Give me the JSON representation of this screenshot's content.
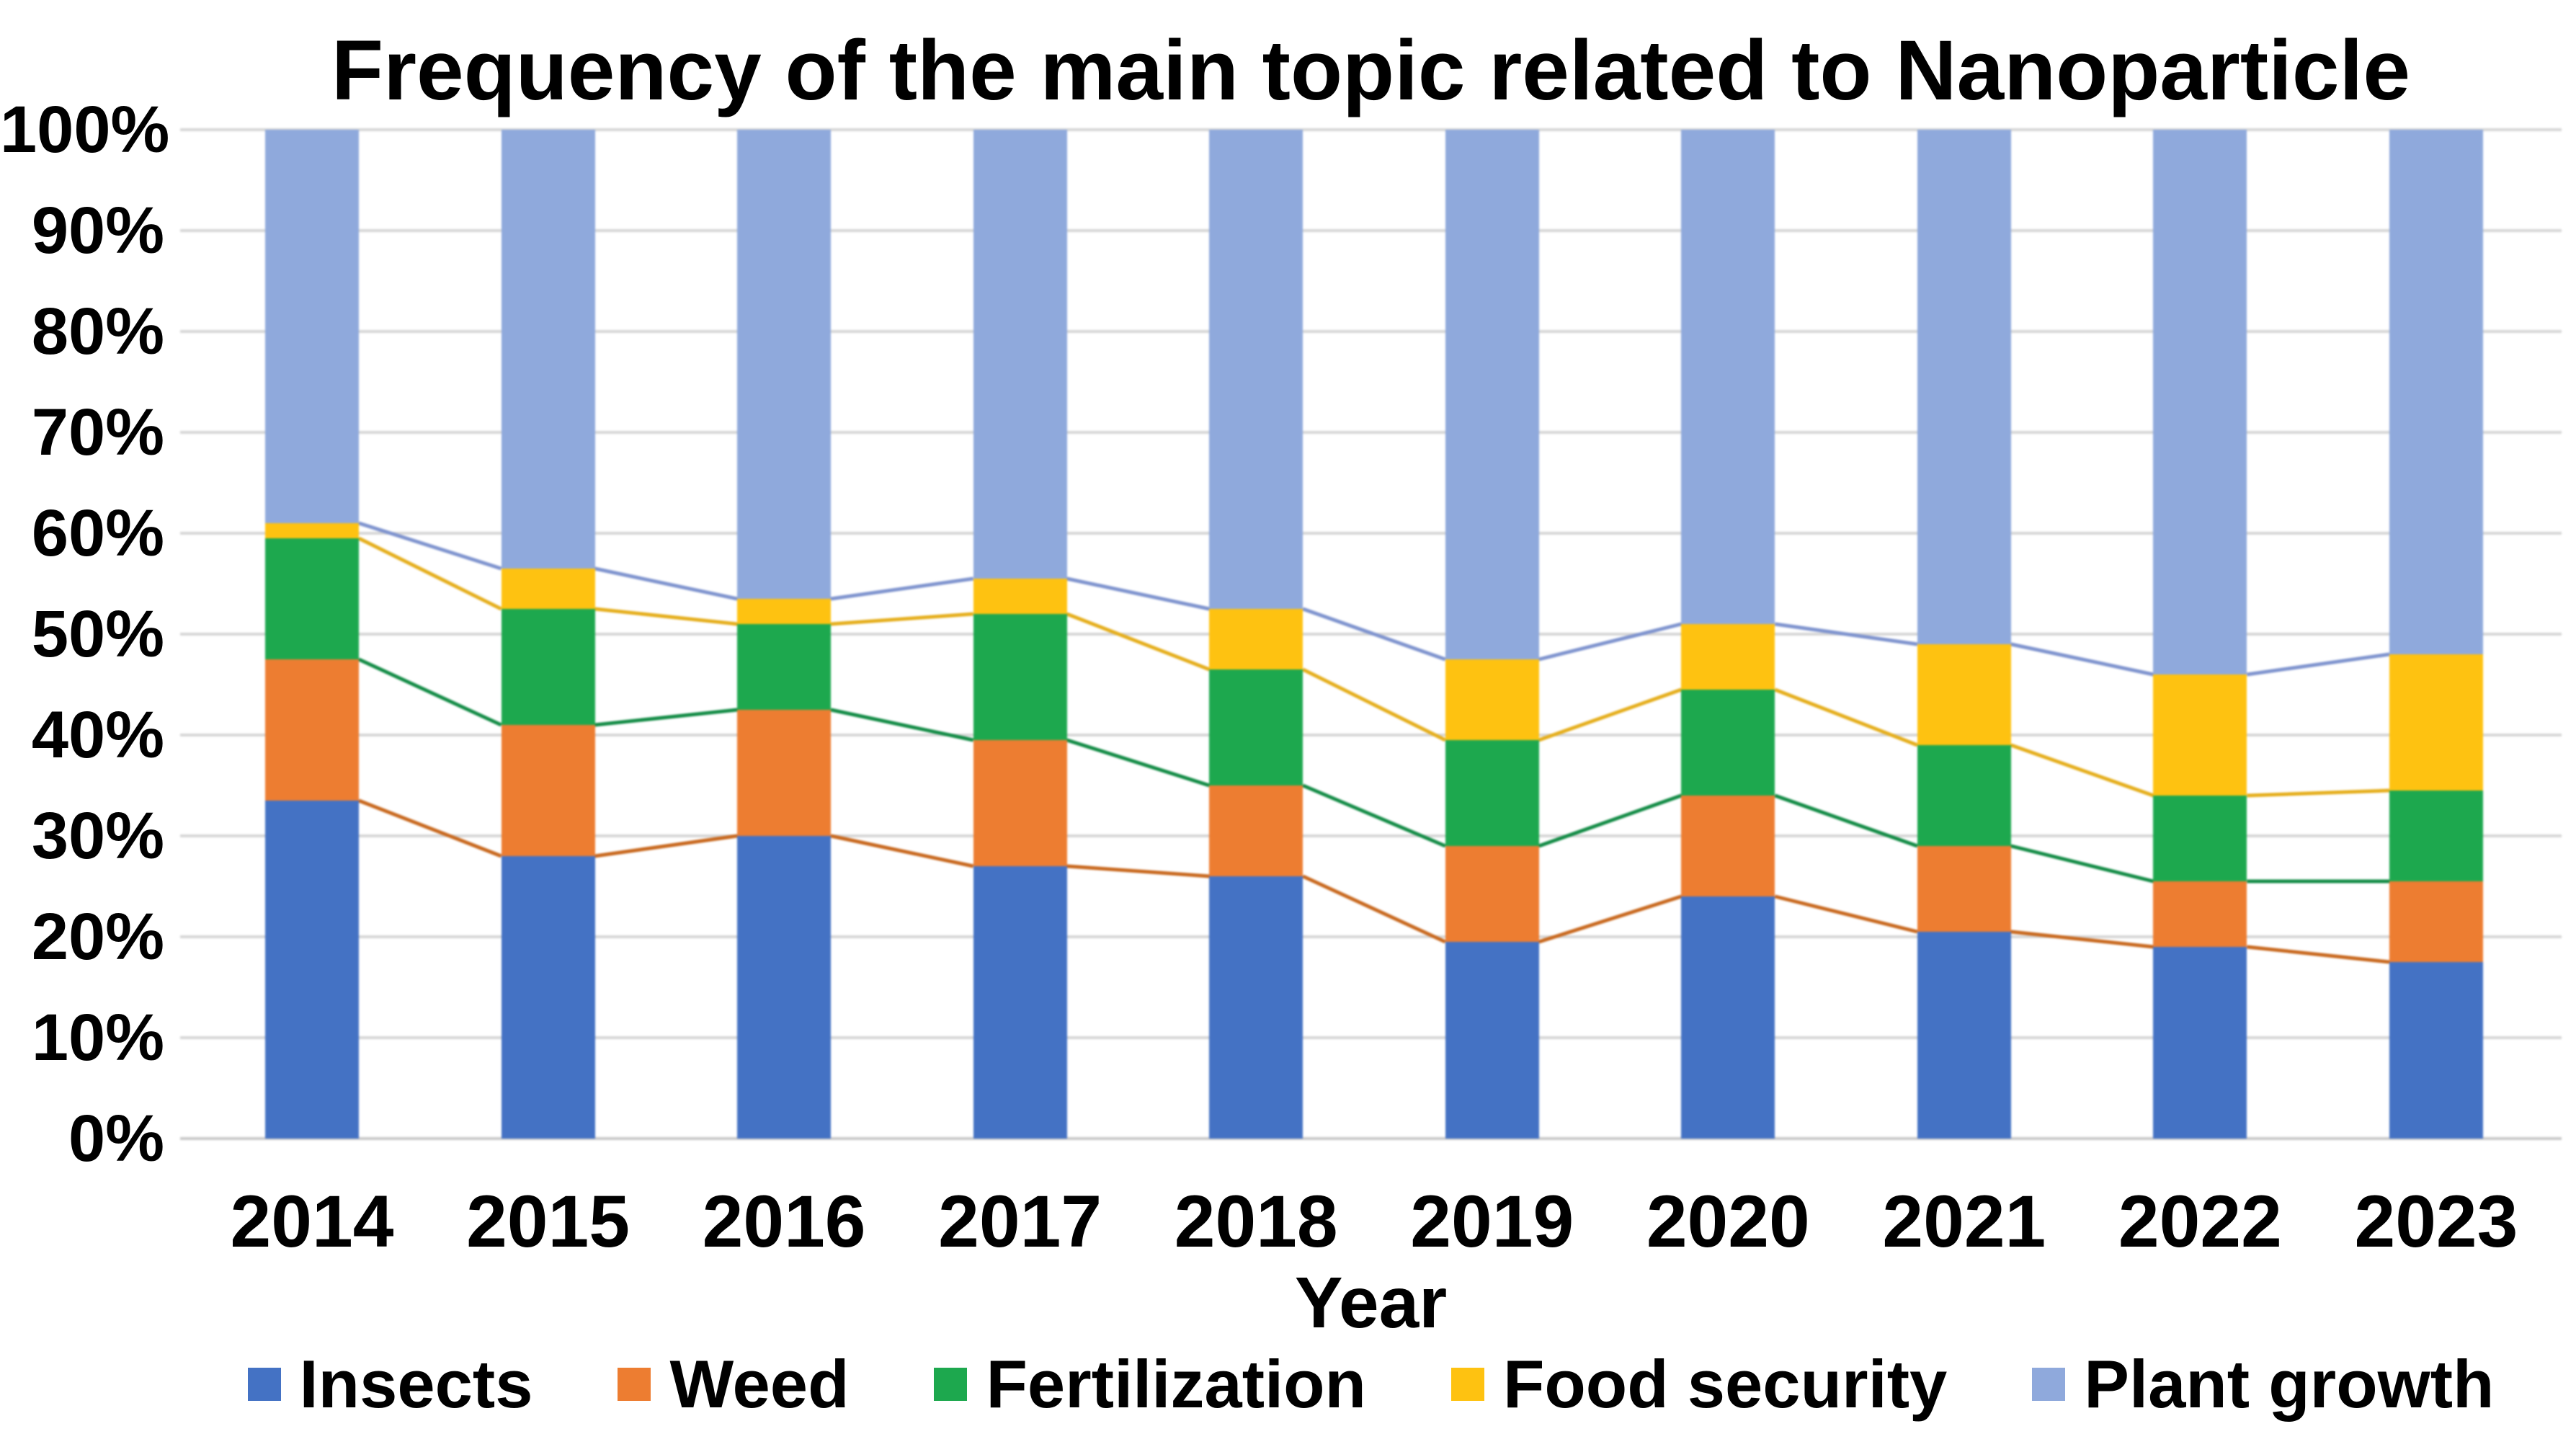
{
  "title": "Frequency of the main topic related to Nanoparticle",
  "x_axis": {
    "label": "Year"
  },
  "y_axis": {
    "ticks_percent": [
      0,
      10,
      20,
      30,
      40,
      50,
      60,
      70,
      80,
      90,
      100
    ],
    "tick_suffix": "%"
  },
  "colors": {
    "gridline": "#d6d6d6",
    "axis_line": "#c9c9c9",
    "text": "#000000"
  },
  "chart_data": {
    "type": "bar",
    "stacking": "percent",
    "title": "Frequency of the main topic related to Nanoparticle",
    "xlabel": "Year",
    "ylabel": "",
    "ylim": [
      0,
      100
    ],
    "grid": true,
    "legend_position": "bottom",
    "categories": [
      "2014",
      "2015",
      "2016",
      "2017",
      "2018",
      "2019",
      "2020",
      "2021",
      "2022",
      "2023"
    ],
    "series": [
      {
        "name": "Insects",
        "color": "#4472C4",
        "connector_color": null,
        "values": [
          33.5,
          28.0,
          30.0,
          27.0,
          26.0,
          19.5,
          24.0,
          20.5,
          19.0,
          17.5
        ]
      },
      {
        "name": "Weed",
        "color": "#ED7D31",
        "connector_color": "#C8681E",
        "values": [
          14.0,
          13.0,
          12.5,
          12.5,
          9.0,
          9.5,
          10.0,
          8.5,
          6.5,
          8.0
        ]
      },
      {
        "name": "Fertilization",
        "color": "#1DA84E",
        "connector_color": "#128B45",
        "values": [
          12.0,
          11.5,
          8.5,
          12.5,
          11.5,
          10.5,
          10.5,
          10.0,
          8.5,
          9.0
        ]
      },
      {
        "name": "Food security",
        "color": "#FEC211",
        "connector_color": "#E5AE1C",
        "values": [
          1.5,
          4.0,
          2.5,
          3.5,
          6.0,
          8.0,
          6.5,
          10.0,
          12.0,
          13.5
        ]
      },
      {
        "name": "Plant growth",
        "color": "#8FA9DC",
        "connector_color": "#7E93CE",
        "values": [
          39.0,
          43.5,
          46.5,
          44.5,
          47.5,
          52.5,
          49.0,
          51.0,
          54.0,
          52.0
        ]
      }
    ]
  }
}
